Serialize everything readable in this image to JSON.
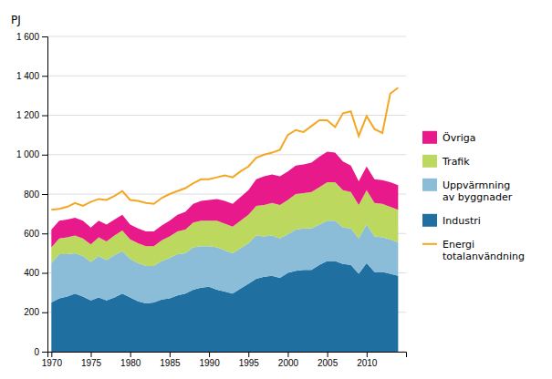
{
  "chart_data": {
    "type": "area",
    "stacked": true,
    "ylabel": "PJ",
    "x": [
      1970,
      1971,
      1972,
      1973,
      1974,
      1975,
      1976,
      1977,
      1978,
      1979,
      1980,
      1981,
      1982,
      1983,
      1984,
      1985,
      1986,
      1987,
      1988,
      1989,
      1990,
      1991,
      1992,
      1993,
      1994,
      1995,
      1996,
      1997,
      1998,
      1999,
      2000,
      2001,
      2002,
      2003,
      2004,
      2005,
      2006,
      2007,
      2008,
      2009,
      2010,
      2011,
      2012,
      2013,
      2014
    ],
    "series": [
      {
        "name": "Industri",
        "color": "#1f6fa0",
        "values": [
          250,
          270,
          280,
          295,
          280,
          260,
          275,
          260,
          275,
          295,
          275,
          255,
          245,
          250,
          265,
          270,
          285,
          295,
          315,
          325,
          330,
          315,
          305,
          295,
          320,
          345,
          370,
          380,
          385,
          375,
          400,
          410,
          415,
          415,
          440,
          460,
          460,
          445,
          440,
          395,
          450,
          405,
          405,
          395,
          385
        ]
      },
      {
        "name": "Uppvärmning\nav byggnader",
        "color": "#8bbdd9",
        "values": [
          200,
          225,
          215,
          205,
          205,
          195,
          210,
          205,
          215,
          215,
          195,
          195,
          190,
          185,
          195,
          205,
          210,
          205,
          215,
          210,
          205,
          215,
          210,
          205,
          205,
          205,
          220,
          205,
          205,
          200,
          195,
          210,
          210,
          210,
          205,
          205,
          205,
          185,
          185,
          180,
          195,
          180,
          175,
          175,
          170
        ]
      },
      {
        "name": "Trafik",
        "color": "#bcd85f",
        "values": [
          80,
          80,
          85,
          90,
          90,
          90,
          95,
          95,
          100,
          105,
          100,
          100,
          100,
          100,
          105,
          110,
          115,
          120,
          125,
          130,
          130,
          135,
          135,
          135,
          140,
          145,
          150,
          160,
          165,
          170,
          175,
          180,
          180,
          185,
          190,
          195,
          195,
          190,
          185,
          170,
          175,
          170,
          170,
          165,
          165
        ]
      },
      {
        "name": "Övriga",
        "color": "#e8198b",
        "values": [
          90,
          90,
          90,
          90,
          90,
          85,
          85,
          85,
          80,
          80,
          75,
          75,
          75,
          75,
          75,
          80,
          85,
          90,
          95,
          100,
          105,
          110,
          115,
          115,
          120,
          125,
          135,
          145,
          145,
          145,
          145,
          145,
          145,
          150,
          155,
          155,
          150,
          145,
          135,
          120,
          120,
          120,
          120,
          125,
          125
        ]
      },
      {
        "name": "Energi\ntotalanvändning",
        "color": "#f5a623",
        "type": "line",
        "values": [
          720,
          725,
          735,
          755,
          740,
          760,
          775,
          770,
          790,
          815,
          770,
          765,
          755,
          750,
          780,
          800,
          815,
          830,
          855,
          875,
          875,
          885,
          895,
          885,
          915,
          940,
          985,
          1000,
          1010,
          1025,
          1100,
          1125,
          1115,
          1145,
          1175,
          1175,
          1140,
          1210,
          1220,
          1095,
          1195,
          1130,
          1110,
          1310,
          1340
        ]
      }
    ],
    "xlim": [
      1969.5,
      2015.0
    ],
    "xticks": [
      1970,
      1975,
      1980,
      1985,
      1990,
      1995,
      2000,
      2005,
      2010
    ],
    "ylim": [
      0,
      1600
    ],
    "yticks": [
      0,
      200,
      400,
      600,
      800,
      {
        "value": 1000,
        "label": "1 000"
      },
      {
        "value": 1200,
        "label": "1 200"
      },
      {
        "value": 1400,
        "label": "1 400"
      },
      {
        "value": 1600,
        "label": "1 600"
      }
    ],
    "grid": true,
    "legend": "right"
  }
}
